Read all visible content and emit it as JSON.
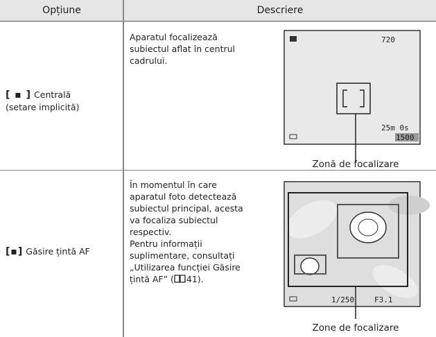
{
  "header": {
    "option": "Opțiune",
    "description": "Descriere"
  },
  "rows": [
    {
      "icon": "[ ▪ ]",
      "option": [
        "Centrală",
        "(setare implicită)"
      ],
      "description": [
        "Aparatul focalizează",
        "subiectul aflat în centrul",
        "cadrului."
      ],
      "screen": [
        "720",
        "25m 0s",
        "1500"
      ],
      "caption": "Zonă de focalizare"
    },
    {
      "icon": "[▪]",
      "option": [
        "Găsire țintă AF"
      ],
      "description": [
        "În momentul în care",
        "aparatul foto detectează",
        "subiectul principal, acesta",
        "va focaliza subiectul",
        "respectiv.",
        "Pentru informații",
        "suplimentare, consultați",
        "„Utilizarea funcției Găsire",
        "țintă AF” (",
        "41)."
      ],
      "screen": [
        "1/250",
        "F3.1"
      ],
      "caption": "Zone de focalizare"
    }
  ]
}
